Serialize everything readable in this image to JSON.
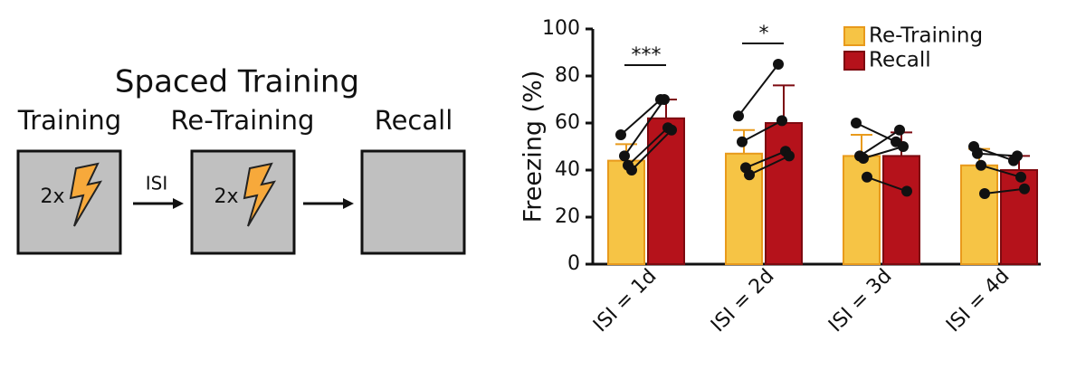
{
  "diagram": {
    "title": "Spaced Training",
    "stages": [
      "Training",
      "Re-Training",
      "Recall"
    ],
    "shock_labels": [
      "2x",
      "2x"
    ],
    "interval_label": "ISI"
  },
  "chart_data": {
    "type": "bar",
    "ylabel": "Freezing (%)",
    "categories": [
      "ISI = 1d",
      "ISI = 2d",
      "ISI = 3d",
      "ISI = 4d"
    ],
    "series": [
      {
        "name": "Re-Training",
        "color": "#f6c445",
        "values": [
          44,
          47,
          46,
          42
        ],
        "errors": [
          7,
          10,
          9,
          7
        ],
        "points": [
          [
            55,
            46,
            42,
            40
          ],
          [
            63,
            52,
            41,
            38
          ],
          [
            60,
            46,
            45,
            37
          ],
          [
            50,
            47,
            42,
            30
          ]
        ]
      },
      {
        "name": "Recall",
        "color": "#b5121b",
        "values": [
          62,
          60,
          46,
          40
        ],
        "errors": [
          8,
          16,
          10,
          6
        ],
        "points": [
          [
            70,
            70,
            58,
            57
          ],
          [
            85,
            61,
            48,
            46
          ],
          [
            52,
            57,
            50,
            31
          ],
          [
            44,
            46,
            37,
            32
          ]
        ]
      }
    ],
    "annotations": [
      "***",
      "*"
    ],
    "ylim": [
      0,
      100
    ],
    "yticks": [
      0,
      20,
      40,
      60,
      80,
      100
    ],
    "legend": "upper right"
  }
}
